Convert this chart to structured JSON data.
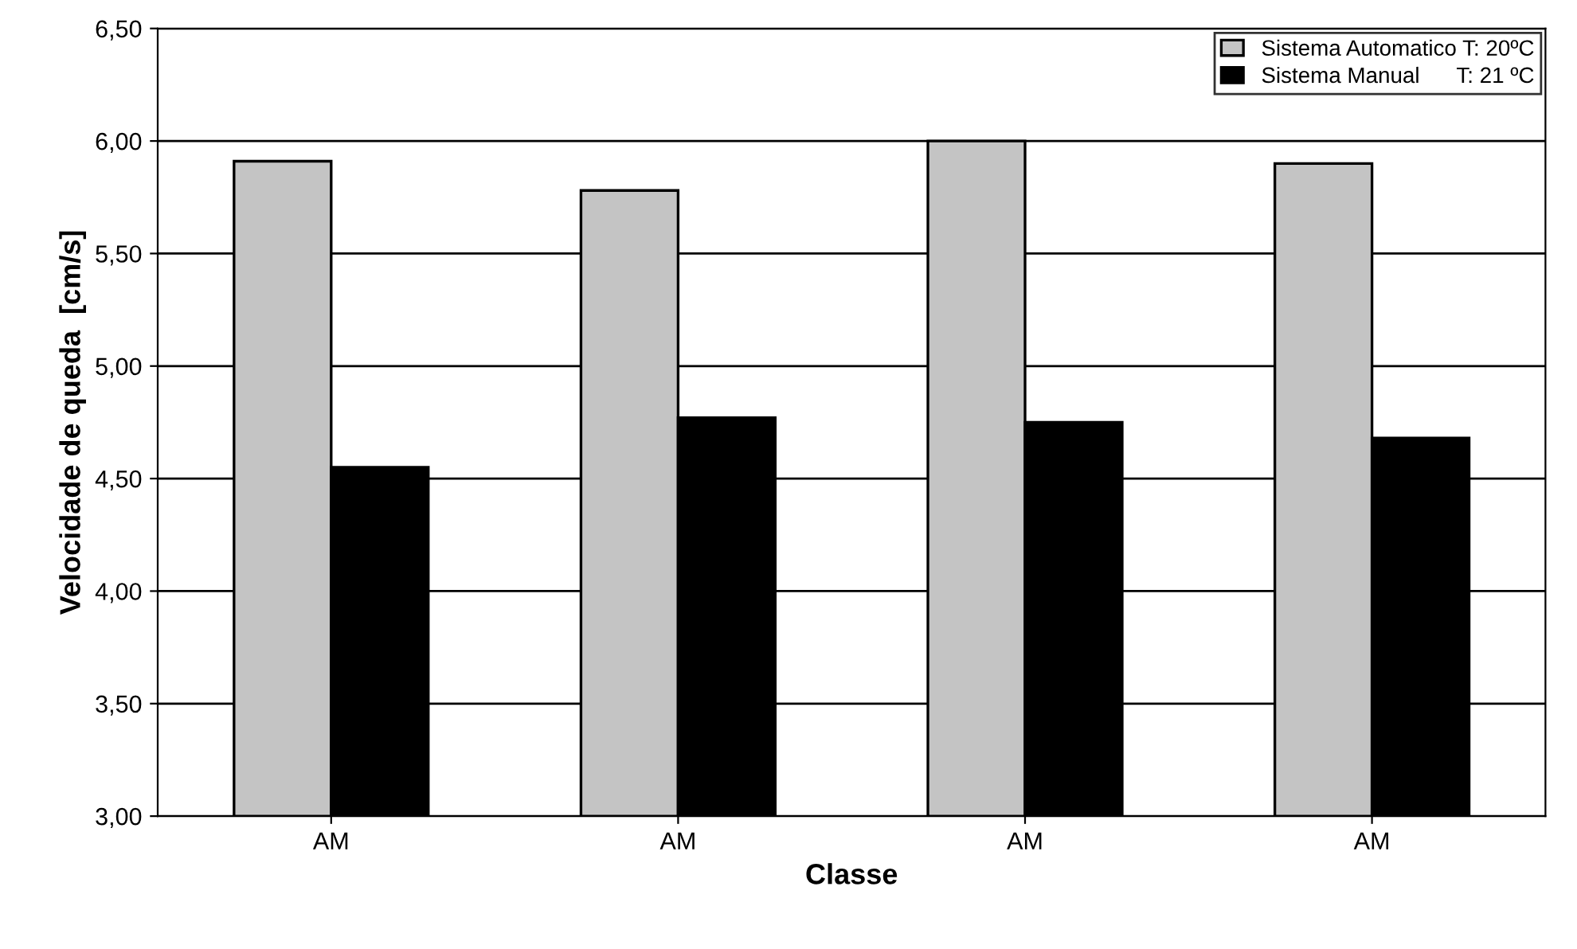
{
  "chart_data": {
    "type": "bar",
    "xlabel": "Classe",
    "ylabel": "Velocidade de queda  [cm/s]",
    "categories": [
      "AM",
      "AM",
      "AM",
      "AM"
    ],
    "series": [
      {
        "name": "Sistema Automatico T: 20ºC",
        "color": "#c4c4c4",
        "values": [
          5.91,
          5.78,
          6.0,
          5.9
        ]
      },
      {
        "name": "Sistema Manual      T: 21 ºC",
        "color": "#000000",
        "values": [
          4.55,
          4.77,
          4.75,
          4.68
        ]
      }
    ],
    "ylim": [
      3,
      6.5
    ],
    "yticks": [
      {
        "value": 3,
        "label": "3,00"
      },
      {
        "value": 3.5,
        "label": "3,50"
      },
      {
        "value": 4,
        "label": "4,00"
      },
      {
        "value": 4.5,
        "label": "4,50"
      },
      {
        "value": 5,
        "label": "5,00"
      },
      {
        "value": 5.5,
        "label": "5,50"
      },
      {
        "value": 6,
        "label": "6,00"
      },
      {
        "value": 6.5,
        "label": "6,50"
      }
    ],
    "grid": "y",
    "legend": "top right"
  }
}
